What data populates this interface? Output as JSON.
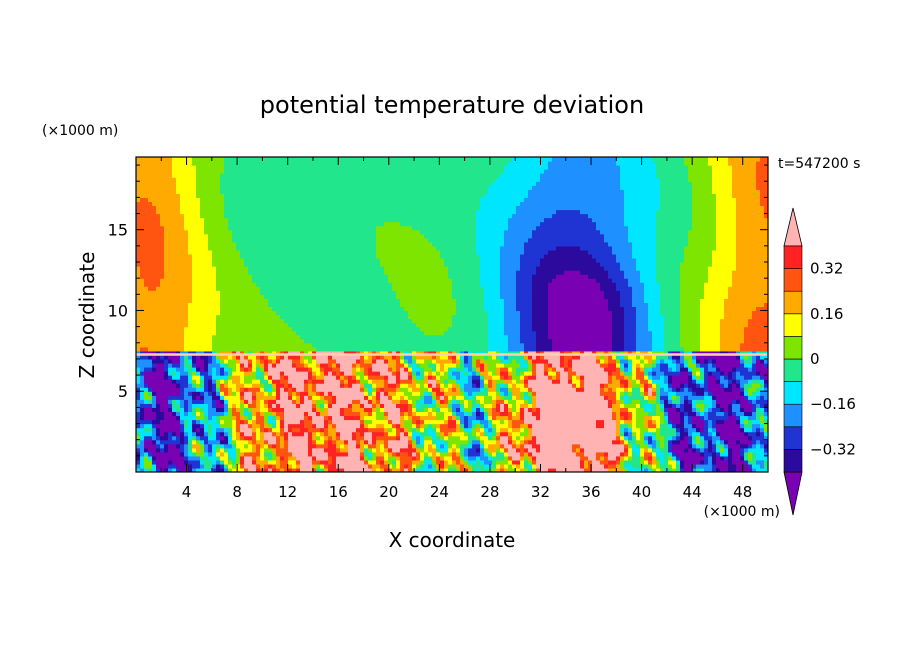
{
  "chart_data": {
    "type": "heatmap",
    "title": "potential temperature deviation",
    "xlabel": "X coordinate",
    "ylabel": "Z coordinate",
    "x_unit": "(×1000 m)",
    "y_unit": "(×1000 m)",
    "time_label": "t=547200 s",
    "xlim": [
      0,
      50
    ],
    "ylim": [
      0,
      19.5
    ],
    "x_ticks": [
      4,
      8,
      12,
      16,
      20,
      24,
      28,
      32,
      36,
      40,
      44,
      48
    ],
    "y_ticks": [
      5,
      10,
      15
    ],
    "colorbar": {
      "levels": [
        -0.4,
        -0.32,
        -0.24,
        -0.16,
        -0.08,
        0,
        0.08,
        0.16,
        0.24,
        0.32,
        0.4
      ],
      "tick_labels": [
        "0.32",
        "0.16",
        "0",
        "−0.16",
        "−0.32"
      ],
      "tick_values": [
        0.32,
        0.16,
        0,
        -0.16,
        -0.32
      ],
      "colors": [
        "#7a00b4",
        "#2c0a9e",
        "#1f34d2",
        "#1e90ff",
        "#00e6ff",
        "#22e68c",
        "#7ee500",
        "#ffff00",
        "#ffaa00",
        "#ff5511",
        "#ff2222",
        "#ffb3b3"
      ]
    },
    "field_summary": "Upper layer (z > 7.5 km) smooth large-scale pattern: positive (orange/yellow) near lateral edges, green over x≈4–26, cyan to dark blue column over x≈28–40; lower layer (z < 7 km) turbulent small-scale eddies with strong warm anomalies (red/pink) near x≈8–24 and x≈30–40 and cold (purple/dark blue) near x≈0–8 and x≈40–50."
  }
}
